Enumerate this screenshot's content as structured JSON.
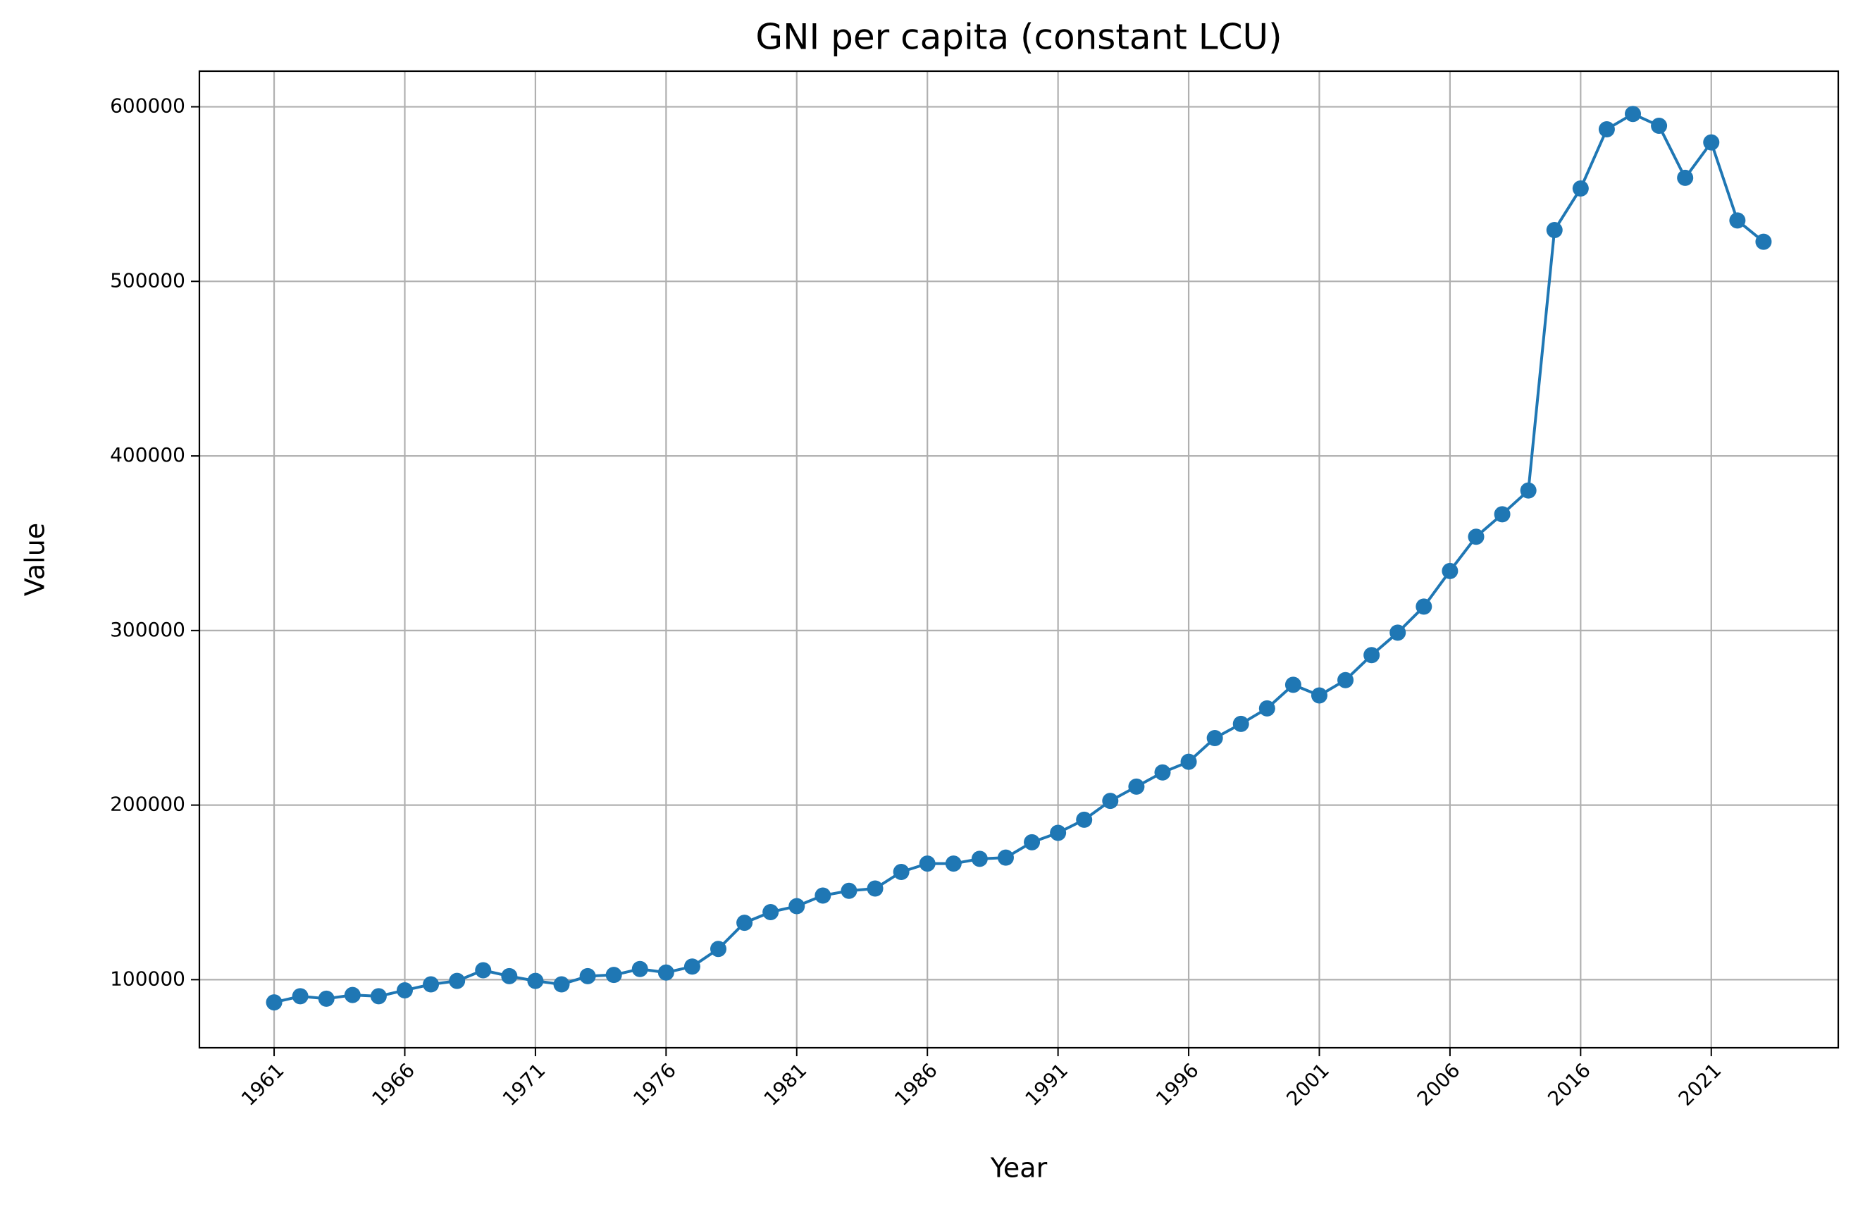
{
  "chart_data": {
    "type": "line",
    "title": "GNI per capita (constant LCU)",
    "x_label": "Year",
    "y_label": "Value",
    "categories": [
      "1961",
      null,
      null,
      null,
      null,
      "1966",
      null,
      null,
      null,
      null,
      "1971",
      null,
      null,
      null,
      null,
      "1976",
      null,
      null,
      null,
      null,
      "1981",
      null,
      null,
      null,
      null,
      "1986",
      null,
      null,
      null,
      null,
      "1991",
      null,
      null,
      null,
      null,
      "1996",
      null,
      null,
      null,
      null,
      "2001",
      null,
      null,
      null,
      null,
      "2006",
      null,
      null,
      null,
      null,
      "2016",
      null,
      null,
      null,
      null,
      "2021",
      null,
      null
    ],
    "series": [
      {
        "name": "GNI per capita",
        "color": "#1f77b4",
        "values": [
          87000,
          90500,
          89100,
          91200,
          90500,
          93900,
          97300,
          99300,
          105400,
          102000,
          99300,
          97300,
          102000,
          102700,
          106100,
          104100,
          107500,
          117600,
          132600,
          138700,
          142100,
          148200,
          150900,
          152200,
          161700,
          166500,
          166500,
          169200,
          169900,
          178700,
          184100,
          191600,
          202400,
          210600,
          218700,
          224800,
          238400,
          246500,
          255400,
          268900,
          262800,
          271600,
          285900,
          298800,
          313700,
          334100,
          353700,
          366600,
          380200,
          529400,
          553200,
          587100,
          595900,
          589100,
          559300,
          579600,
          534900,
          522700
        ]
      }
    ],
    "ylim": [
      61000,
      620400
    ],
    "yticks": [
      100000,
      200000,
      300000,
      400000,
      500000,
      600000
    ],
    "grid": true
  }
}
